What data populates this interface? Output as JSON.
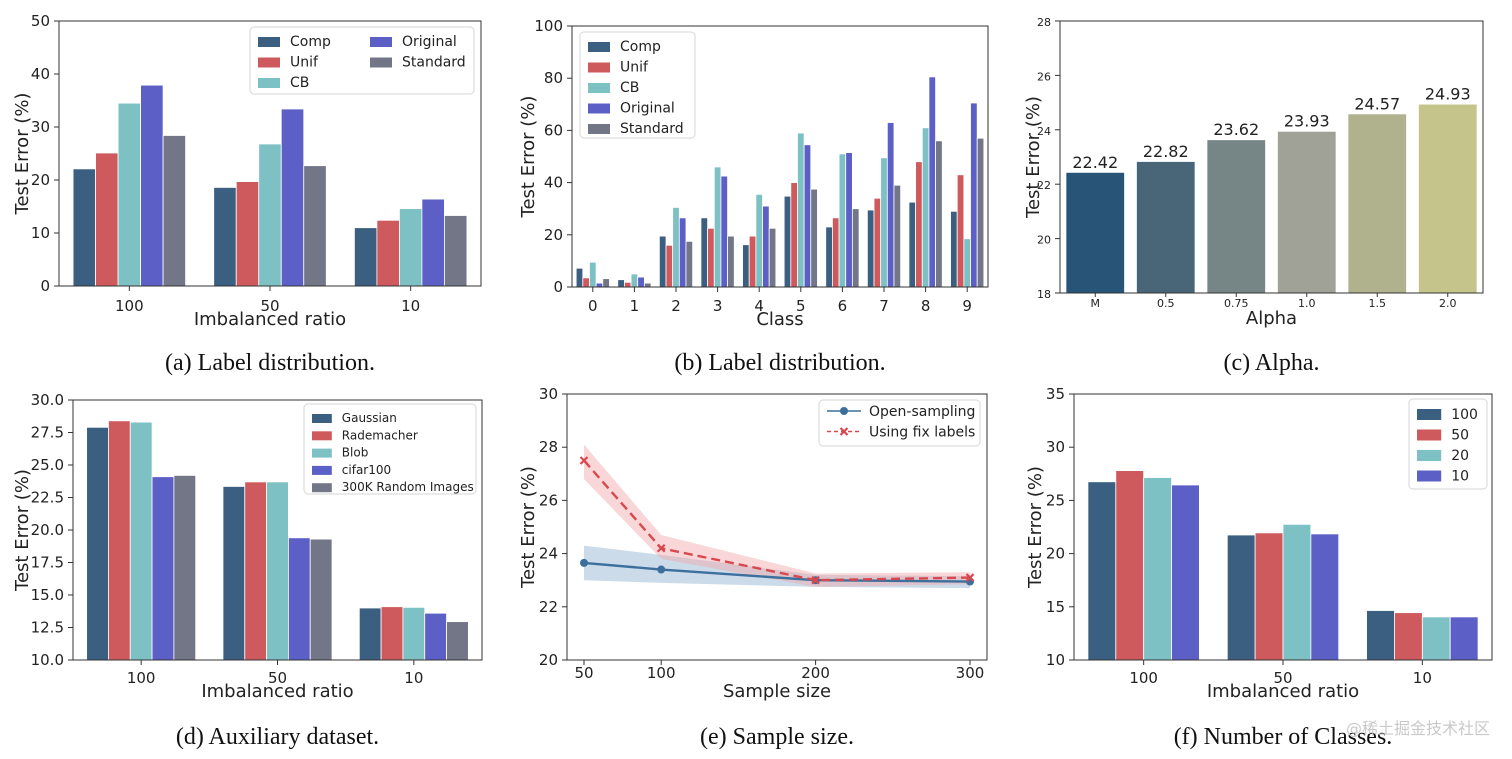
{
  "colors": {
    "comp": "#3a5f80",
    "unif": "#cf5a5e",
    "cb": "#7ec1c5",
    "original": "#5c5fc6",
    "standard": "#727687",
    "axis": "#333333",
    "band_blue": "#8fb0cf",
    "band_red": "#f2a6a8",
    "line_blue": "#3c6f9c",
    "line_red": "#d9484e"
  },
  "watermark": "@稀土掘金技术社区",
  "chart_data": [
    {
      "id": "a",
      "type": "bar",
      "caption": "(a) Label distribution.",
      "xlabel": "Imbalanced ratio",
      "ylabel": "Test Error (%)",
      "categories": [
        "100",
        "50",
        "10"
      ],
      "ylim": [
        0,
        50
      ],
      "yticks": [
        "0",
        "10",
        "20",
        "30",
        "40",
        "50"
      ],
      "legend_position": "top-right",
      "series": [
        {
          "name": "Comp",
          "color_key": "comp",
          "values": [
            22.1,
            18.6,
            11.0
          ]
        },
        {
          "name": "Unif",
          "color_key": "unif",
          "values": [
            25.1,
            19.7,
            12.4
          ]
        },
        {
          "name": "CB",
          "color_key": "cb",
          "values": [
            34.5,
            26.8,
            14.6
          ]
        },
        {
          "name": "Original",
          "color_key": "original",
          "values": [
            37.9,
            33.4,
            16.4
          ]
        },
        {
          "name": "Standard",
          "color_key": "standard",
          "values": [
            28.4,
            22.7,
            13.3
          ]
        }
      ]
    },
    {
      "id": "b",
      "type": "bar",
      "caption": "(b) Label distribution.",
      "xlabel": "Class",
      "ylabel": "Test Error (%)",
      "categories": [
        "0",
        "1",
        "2",
        "3",
        "4",
        "5",
        "6",
        "7",
        "8",
        "9"
      ],
      "ylim": [
        0,
        100
      ],
      "yticks": [
        "0",
        "20",
        "40",
        "60",
        "80",
        "100"
      ],
      "legend_position": "top-left",
      "series": [
        {
          "name": "Comp",
          "color_key": "comp",
          "values": [
            7.2,
            2.8,
            19.5,
            26.5,
            16.2,
            34.8,
            23.0,
            29.5,
            32.5,
            29.0
          ]
        },
        {
          "name": "Unif",
          "color_key": "unif",
          "values": [
            3.5,
            1.8,
            16.0,
            22.5,
            19.5,
            40.0,
            26.5,
            34.0,
            48.0,
            43.0
          ]
        },
        {
          "name": "CB",
          "color_key": "cb",
          "values": [
            9.5,
            5.0,
            30.5,
            46.0,
            35.5,
            59.0,
            51.0,
            49.5,
            61.0,
            18.5
          ]
        },
        {
          "name": "Original",
          "color_key": "original",
          "values": [
            1.5,
            3.8,
            26.5,
            42.5,
            31.0,
            54.5,
            51.5,
            63.0,
            80.5,
            70.5
          ]
        },
        {
          "name": "Standard",
          "color_key": "standard",
          "values": [
            3.2,
            1.5,
            17.5,
            19.5,
            22.5,
            37.5,
            30.0,
            39.0,
            56.0,
            57.0
          ]
        }
      ]
    },
    {
      "id": "c",
      "type": "bar",
      "caption": "(c) Alpha.",
      "xlabel": "Alpha",
      "ylabel": "Test Error (%)",
      "categories": [
        "M",
        "0.5",
        "0.75",
        "1.0",
        "1.5",
        "2.0"
      ],
      "ylim": [
        18,
        28
      ],
      "yticks": [
        "18",
        "20",
        "22",
        "24",
        "26",
        "28"
      ],
      "values": [
        22.42,
        22.82,
        23.62,
        23.93,
        24.57,
        24.93
      ],
      "data_labels": [
        "22.42",
        "22.82",
        "23.62",
        "23.93",
        "24.57",
        "24.93"
      ],
      "bar_colors": [
        "#285478",
        "#486678",
        "#768586",
        "#a1a297",
        "#b0b28e",
        "#c5c48b"
      ]
    },
    {
      "id": "d",
      "type": "bar",
      "caption": "(d) Auxiliary dataset.",
      "xlabel": "Imbalanced ratio",
      "ylabel": "Test Error (%)",
      "categories": [
        "100",
        "50",
        "10"
      ],
      "ylim": [
        10,
        30
      ],
      "yticks": [
        "10.0",
        "12.5",
        "15.0",
        "17.5",
        "20.0",
        "22.5",
        "25.0",
        "27.5",
        "30.0"
      ],
      "legend_position": "top-right",
      "series": [
        {
          "name": "Gaussian",
          "color_key": "comp",
          "values": [
            27.9,
            23.35,
            14.0
          ]
        },
        {
          "name": "Rademacher",
          "color_key": "unif",
          "values": [
            28.4,
            23.7,
            14.1
          ]
        },
        {
          "name": "Blob",
          "color_key": "cb",
          "values": [
            28.3,
            23.7,
            14.05
          ]
        },
        {
          "name": "cifar100",
          "color_key": "original",
          "values": [
            24.1,
            19.4,
            13.6
          ]
        },
        {
          "name": "300K Random Images",
          "color_key": "standard",
          "values": [
            24.2,
            19.3,
            12.95
          ]
        }
      ]
    },
    {
      "id": "e",
      "type": "line",
      "caption": "(e) Sample size.",
      "xlabel": "Sample size",
      "ylabel": "Test Error (%)",
      "x": [
        50,
        100,
        200,
        300
      ],
      "xticks": [
        "50",
        "100",
        "200",
        "300"
      ],
      "ylim": [
        20,
        30
      ],
      "yticks": [
        "20",
        "22",
        "24",
        "26",
        "28",
        "30"
      ],
      "legend_position": "top-right",
      "series": [
        {
          "name": "Open-sampling",
          "color_key": "line_blue",
          "band_key": "band_blue",
          "marker": "circle",
          "linestyle": "solid",
          "values": [
            23.65,
            23.4,
            23.0,
            22.95
          ],
          "lower": [
            23.0,
            22.9,
            22.75,
            22.7
          ],
          "upper": [
            24.3,
            23.95,
            23.2,
            23.15
          ]
        },
        {
          "name": "Using fix labels",
          "color_key": "line_red",
          "band_key": "band_red",
          "marker": "x",
          "linestyle": "dashed",
          "values": [
            27.5,
            24.2,
            23.0,
            23.1
          ],
          "lower": [
            26.8,
            23.8,
            22.75,
            22.85
          ],
          "upper": [
            28.1,
            24.7,
            23.25,
            23.3
          ]
        }
      ]
    },
    {
      "id": "f",
      "type": "bar",
      "caption": "(f) Number of Classes.",
      "xlabel": "Imbalanced ratio",
      "ylabel": "Test Error (%)",
      "categories": [
        "100",
        "50",
        "10"
      ],
      "ylim": [
        10,
        35
      ],
      "yticks": [
        "10",
        "15",
        "20",
        "25",
        "30",
        "35"
      ],
      "legend_position": "top-right",
      "series": [
        {
          "name": "100",
          "color_key": "comp",
          "values": [
            26.75,
            21.75,
            14.65
          ]
        },
        {
          "name": "50",
          "color_key": "unif",
          "values": [
            27.8,
            21.95,
            14.45
          ]
        },
        {
          "name": "20",
          "color_key": "cb",
          "values": [
            27.15,
            22.75,
            14.05
          ]
        },
        {
          "name": "10",
          "color_key": "original",
          "values": [
            26.45,
            21.85,
            14.05
          ]
        }
      ]
    }
  ]
}
